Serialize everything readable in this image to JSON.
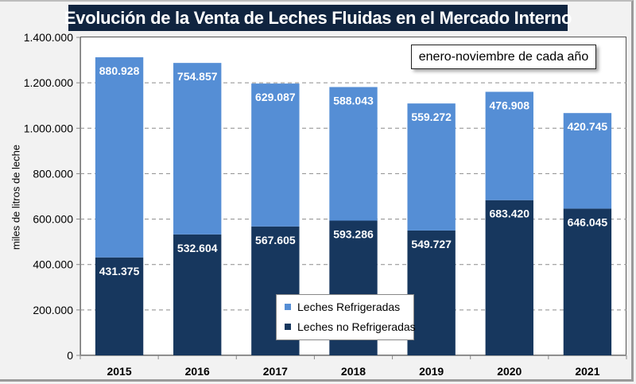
{
  "chart_data": {
    "type": "bar",
    "stacked": true,
    "title": "Evolución  de la Venta de Leches Fluidas  en el Mercado  Interno",
    "annotation": "enero-noviembre de cada año",
    "xlabel": "",
    "ylabel": "miles de litros de leche",
    "ylim": [
      0,
      1400000
    ],
    "yticks": [
      0,
      200000,
      400000,
      600000,
      800000,
      1000000,
      1200000,
      1400000
    ],
    "ytick_labels": [
      "0",
      "200.000",
      "400.000",
      "600.000",
      "800.000",
      "1.000.000",
      "1.200.000",
      "1.400.000"
    ],
    "grid": "horizontal-dashed",
    "legend_position": "bottom-center",
    "categories": [
      "2015",
      "2016",
      "2017",
      "2018",
      "2019",
      "2020",
      "2021"
    ],
    "series": [
      {
        "name": "Leches no Refrigeradas",
        "color": "#17375e",
        "values": [
          431375,
          532604,
          567605,
          593286,
          549727,
          683420,
          646045
        ],
        "labels": [
          "431.375",
          "532.604",
          "567.605",
          "593.286",
          "549.727",
          "683.420",
          "646.045"
        ]
      },
      {
        "name": "Leches Refrigeradas",
        "color": "#558ed5",
        "values": [
          880928,
          754857,
          629087,
          588043,
          559272,
          476908,
          420745
        ],
        "labels": [
          "880.928",
          "754.857",
          "629.087",
          "588.043",
          "559.272",
          "476.908",
          "420.745"
        ]
      }
    ]
  }
}
